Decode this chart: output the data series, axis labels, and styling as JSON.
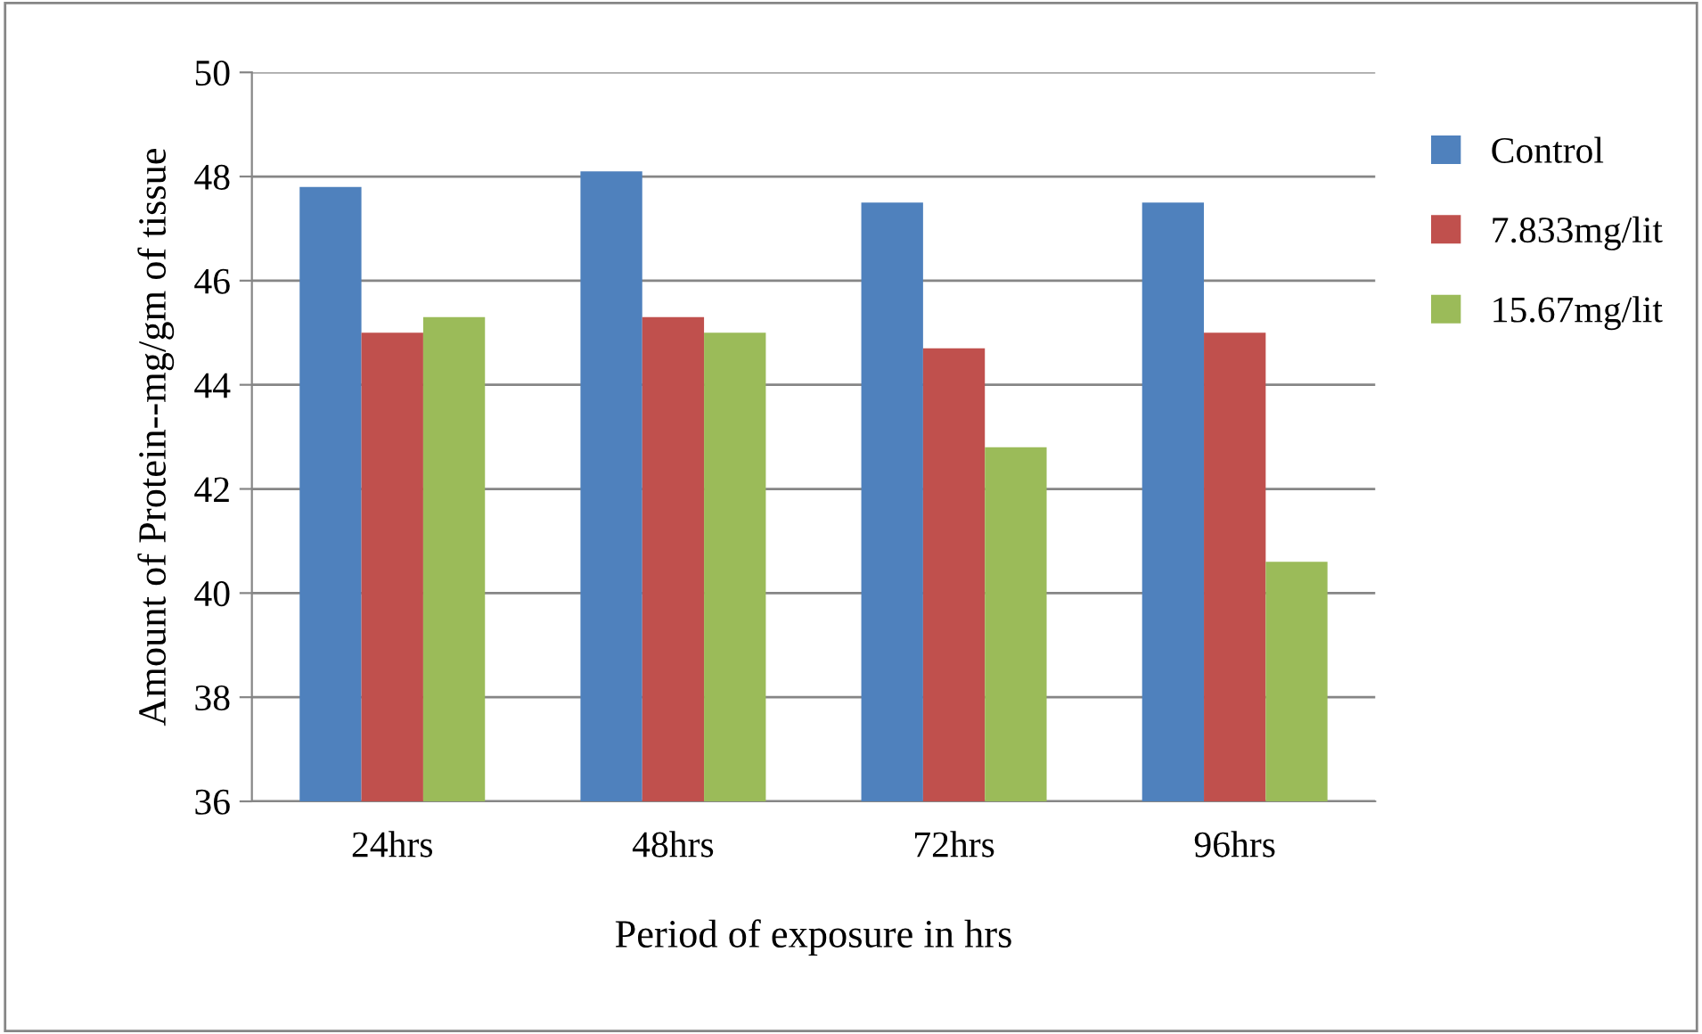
{
  "chart_data": {
    "type": "bar",
    "xlabel": "Period of exposure in hrs",
    "ylabel": "Amount of Protein--mg/gm of tissue",
    "categories": [
      "24hrs",
      "48hrs",
      "72hrs",
      "96hrs"
    ],
    "series": [
      {
        "name": "Control",
        "color": "#4f81bd",
        "values": [
          47.8,
          48.1,
          47.5,
          47.5
        ]
      },
      {
        "name": "7.833mg/lit",
        "color": "#c0504d",
        "values": [
          45.0,
          45.3,
          44.7,
          45.0
        ]
      },
      {
        "name": "15.67mg/lit",
        "color": "#9bbb59",
        "values": [
          45.3,
          45.0,
          42.8,
          40.6
        ]
      }
    ],
    "ylim": [
      36,
      50
    ],
    "yticks": [
      36,
      38,
      40,
      42,
      44,
      46,
      48,
      50
    ],
    "grid": "y",
    "legend": "right"
  }
}
